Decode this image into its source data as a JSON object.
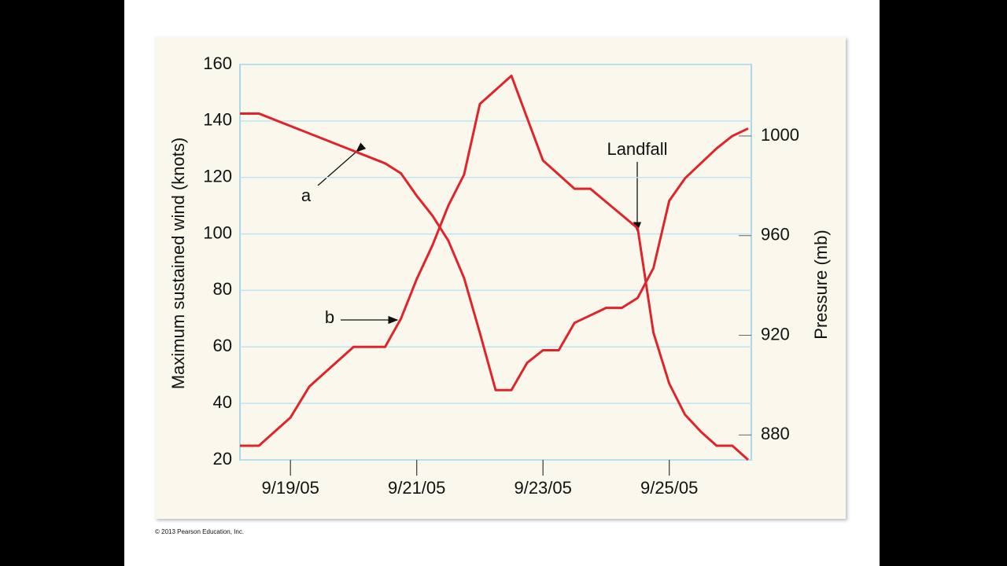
{
  "chart_data": {
    "type": "line",
    "y_label": "Maximum sustained wind (knots)",
    "y2_label": "Pressure (mb)",
    "xlim": [
      18.2,
      26.3
    ],
    "xticks": [
      {
        "value": 19,
        "label": "9/19/05"
      },
      {
        "value": 21,
        "label": "9/21/05"
      },
      {
        "value": 23,
        "label": "9/23/05"
      },
      {
        "value": 25,
        "label": "9/25/05"
      }
    ],
    "ylim": [
      20,
      160
    ],
    "yticks": [
      20,
      40,
      60,
      80,
      100,
      120,
      140,
      160
    ],
    "y2lim": [
      870,
      1028.7
    ],
    "y2ticks": [
      880,
      920,
      960,
      1000
    ],
    "grid": true,
    "series": [
      {
        "color": "#e0242b",
        "axis": "y",
        "x": [
          18.2,
          18.5,
          19,
          19.3,
          20,
          20.5,
          20.75,
          21,
          21.25,
          21.5,
          21.75,
          22,
          22.5,
          23,
          23.5,
          23.75,
          24.5,
          24.75,
          25,
          25.25,
          25.5,
          25.75,
          26,
          26.25
        ],
        "values": [
          25,
          25,
          35,
          46,
          60,
          60,
          70,
          84,
          96,
          110,
          121,
          146,
          156,
          126,
          116,
          116,
          102,
          65,
          47,
          36,
          30,
          25,
          25,
          20
        ]
      },
      {
        "color": "#e0242b",
        "axis": "y2",
        "x": [
          18.2,
          18.5,
          20.5,
          20.75,
          21,
          21.25,
          21.5,
          21.75,
          22,
          22.25,
          22.5,
          22.75,
          23,
          23.25,
          23.5,
          23.75,
          24,
          24.25,
          24.5,
          24.75,
          25,
          25.25,
          25.5,
          25.75,
          26,
          26.25
        ],
        "values": [
          1009,
          1009,
          989,
          985,
          976,
          968,
          958,
          943,
          921,
          898,
          898,
          909,
          914,
          914,
          925,
          928,
          931,
          931,
          935,
          947,
          974,
          983,
          989,
          995,
          1000,
          1003
        ]
      }
    ],
    "annotations": [
      "a",
      "b",
      "Landfall"
    ],
    "source": "© 2013 Pearson Education, Inc."
  }
}
